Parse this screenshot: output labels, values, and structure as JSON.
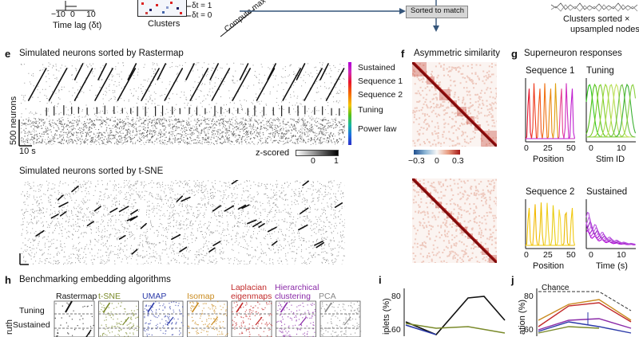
{
  "top": {
    "time_lag_label": "Time lag (δt)",
    "ticks": [
      "−10",
      "0",
      "10"
    ],
    "clusters_label": "Clusters",
    "dt1": "δt = 1",
    "dt0": "δt = 0",
    "compute_label": "Compute max o",
    "sorted_to_match": "Sorted to match",
    "clusters_sorted": "Clusters sorted ×",
    "upsampled_nodes": "upsampled nodes"
  },
  "e": {
    "letter": "e",
    "title": "Simulated neurons sorted by Rastermap",
    "y_label": "500 neurons",
    "scale_label": "10 s",
    "legend": [
      "Sustained",
      "Sequence 1",
      "Sequence 2",
      "Tuning",
      "Power law"
    ],
    "legend_colors": [
      "#b000d6",
      "#e8162e",
      "#f59a00",
      "#55c21a",
      "#1e6fe0"
    ],
    "zscored_label": "z-scored",
    "zscored_ticks": [
      "0",
      "1"
    ],
    "tsne_title": "Simulated neurons sorted by t-SNE"
  },
  "f": {
    "letter": "f",
    "title": "Asymmetric similarity",
    "ticks": [
      "−0.3",
      "0",
      "0.3"
    ]
  },
  "g": {
    "letter": "g",
    "title": "Superneuron responses",
    "seq1": "Sequence 1",
    "tuning": "Tuning",
    "seq2": "Sequence 2",
    "sustained": "Sustained",
    "seq1_ticks": [
      "0",
      "25",
      "50"
    ],
    "tuning_ticks": [
      "0",
      "10"
    ],
    "seq2_ticks": [
      "0",
      "25",
      "50"
    ],
    "sustained_ticks": [
      "0",
      "10"
    ],
    "position": "Position",
    "stim_id": "Stim ID",
    "position2": "Position",
    "time": "Time (s)"
  },
  "h": {
    "letter": "h",
    "title": "Benchmarking embedding algorithms",
    "methods": [
      {
        "name": "Rastermap",
        "color": "#111111"
      },
      {
        "name": "t-SNE",
        "color": "#7a8a2a"
      },
      {
        "name": "UMAP",
        "color": "#2b3aa8"
      },
      {
        "name": "Isomap",
        "color": "#c98a1e"
      },
      {
        "name": "Laplacian",
        "name2": "eigenmaps",
        "color": "#c22a2a"
      },
      {
        "name": "Hierarchical",
        "name2": "clustering",
        "color": "#8a2aa8"
      },
      {
        "name": "PCA",
        "color": "#888888"
      }
    ],
    "rows": [
      "Tuning",
      "Sustained"
    ],
    "truth": "ruth"
  },
  "i": {
    "letter": "i",
    "y_label": "iplets (%)",
    "ticks": [
      "80",
      "60"
    ]
  },
  "j": {
    "letter": "j",
    "chance": "Chance",
    "y_label": "ation (%)",
    "ticks": [
      "80",
      "60"
    ]
  }
}
